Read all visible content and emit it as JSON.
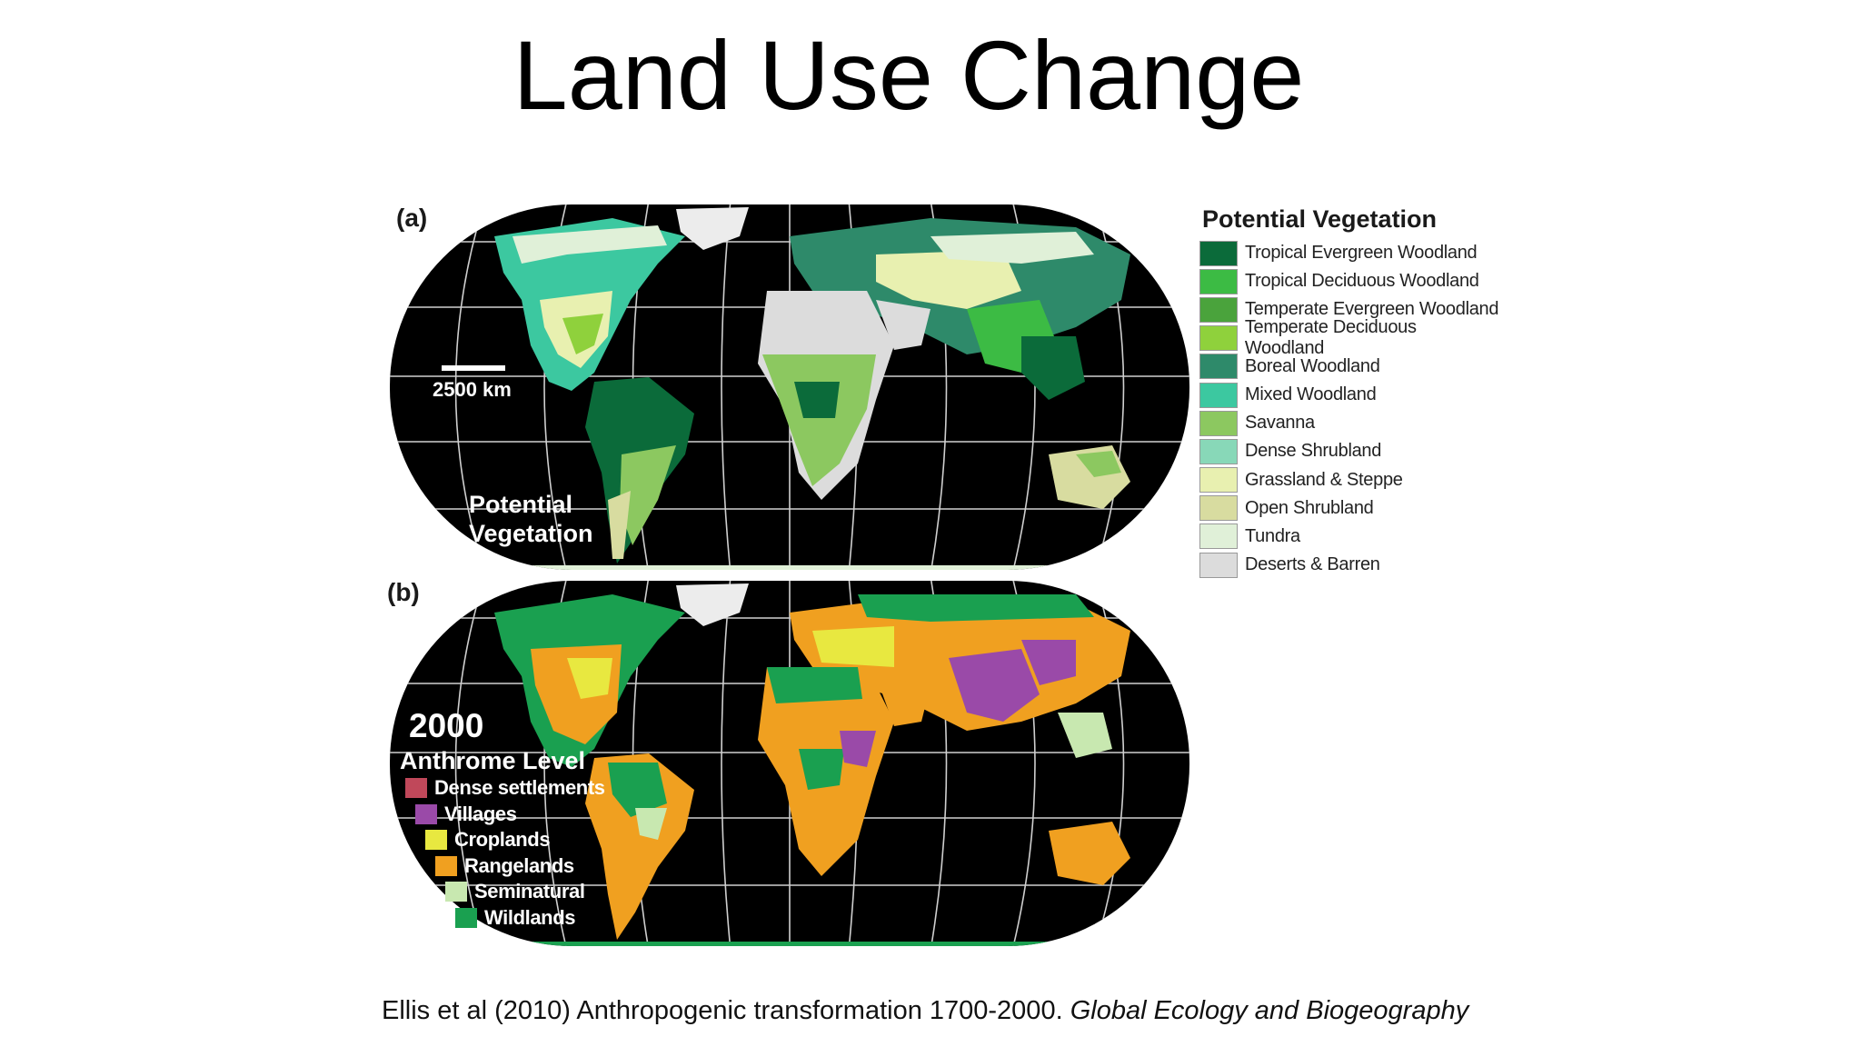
{
  "slide": {
    "title": "Land Use Change",
    "citation_main": "Ellis et al (2010) Anthropogenic transformation 1700-2000. ",
    "citation_journal": "Global Ecology and Biogeography"
  },
  "map_a": {
    "panel_label": "(a)",
    "scale_label": "2500 km",
    "overlay_line1": "Potential",
    "overlay_line2": "Vegetation"
  },
  "map_b": {
    "panel_label": "(b)",
    "year": "2000",
    "heading": "Anthrome Level"
  },
  "legend_a": {
    "title": "Potential Vegetation",
    "items": [
      {
        "label": "Tropical Evergreen Woodland",
        "color": "#0b6b3a"
      },
      {
        "label": "Tropical Deciduous Woodland",
        "color": "#3cbb44"
      },
      {
        "label": "Temperate Evergreen Woodland",
        "color": "#4aa33c"
      },
      {
        "label": "Temperate Deciduous Woodland",
        "color": "#8fd13c"
      },
      {
        "label": "Boreal Woodland",
        "color": "#2e8a6a"
      },
      {
        "label": "Mixed Woodland",
        "color": "#3cc8a0"
      },
      {
        "label": "Savanna",
        "color": "#8cc860"
      },
      {
        "label": "Dense Shrubland",
        "color": "#88d8b8"
      },
      {
        "label": "Grassland & Steppe",
        "color": "#e8f0b0"
      },
      {
        "label": "Open Shrubland",
        "color": "#d8dca0"
      },
      {
        "label": "Tundra",
        "color": "#e0f0d8"
      },
      {
        "label": "Deserts & Barren",
        "color": "#dcdcdc"
      }
    ]
  },
  "legend_b": {
    "items": [
      {
        "label": "Dense settlements",
        "color": "#c0485a"
      },
      {
        "label": "Villages",
        "color": "#9a4aa8"
      },
      {
        "label": "Croplands",
        "color": "#e8e840"
      },
      {
        "label": "Rangelands",
        "color": "#f0a020"
      },
      {
        "label": "Seminatural",
        "color": "#c8e8b0"
      },
      {
        "label": "Wildlands",
        "color": "#1aa050"
      }
    ]
  },
  "colors": {
    "ocean": "#000000",
    "graticule": "#cfcfcf"
  }
}
